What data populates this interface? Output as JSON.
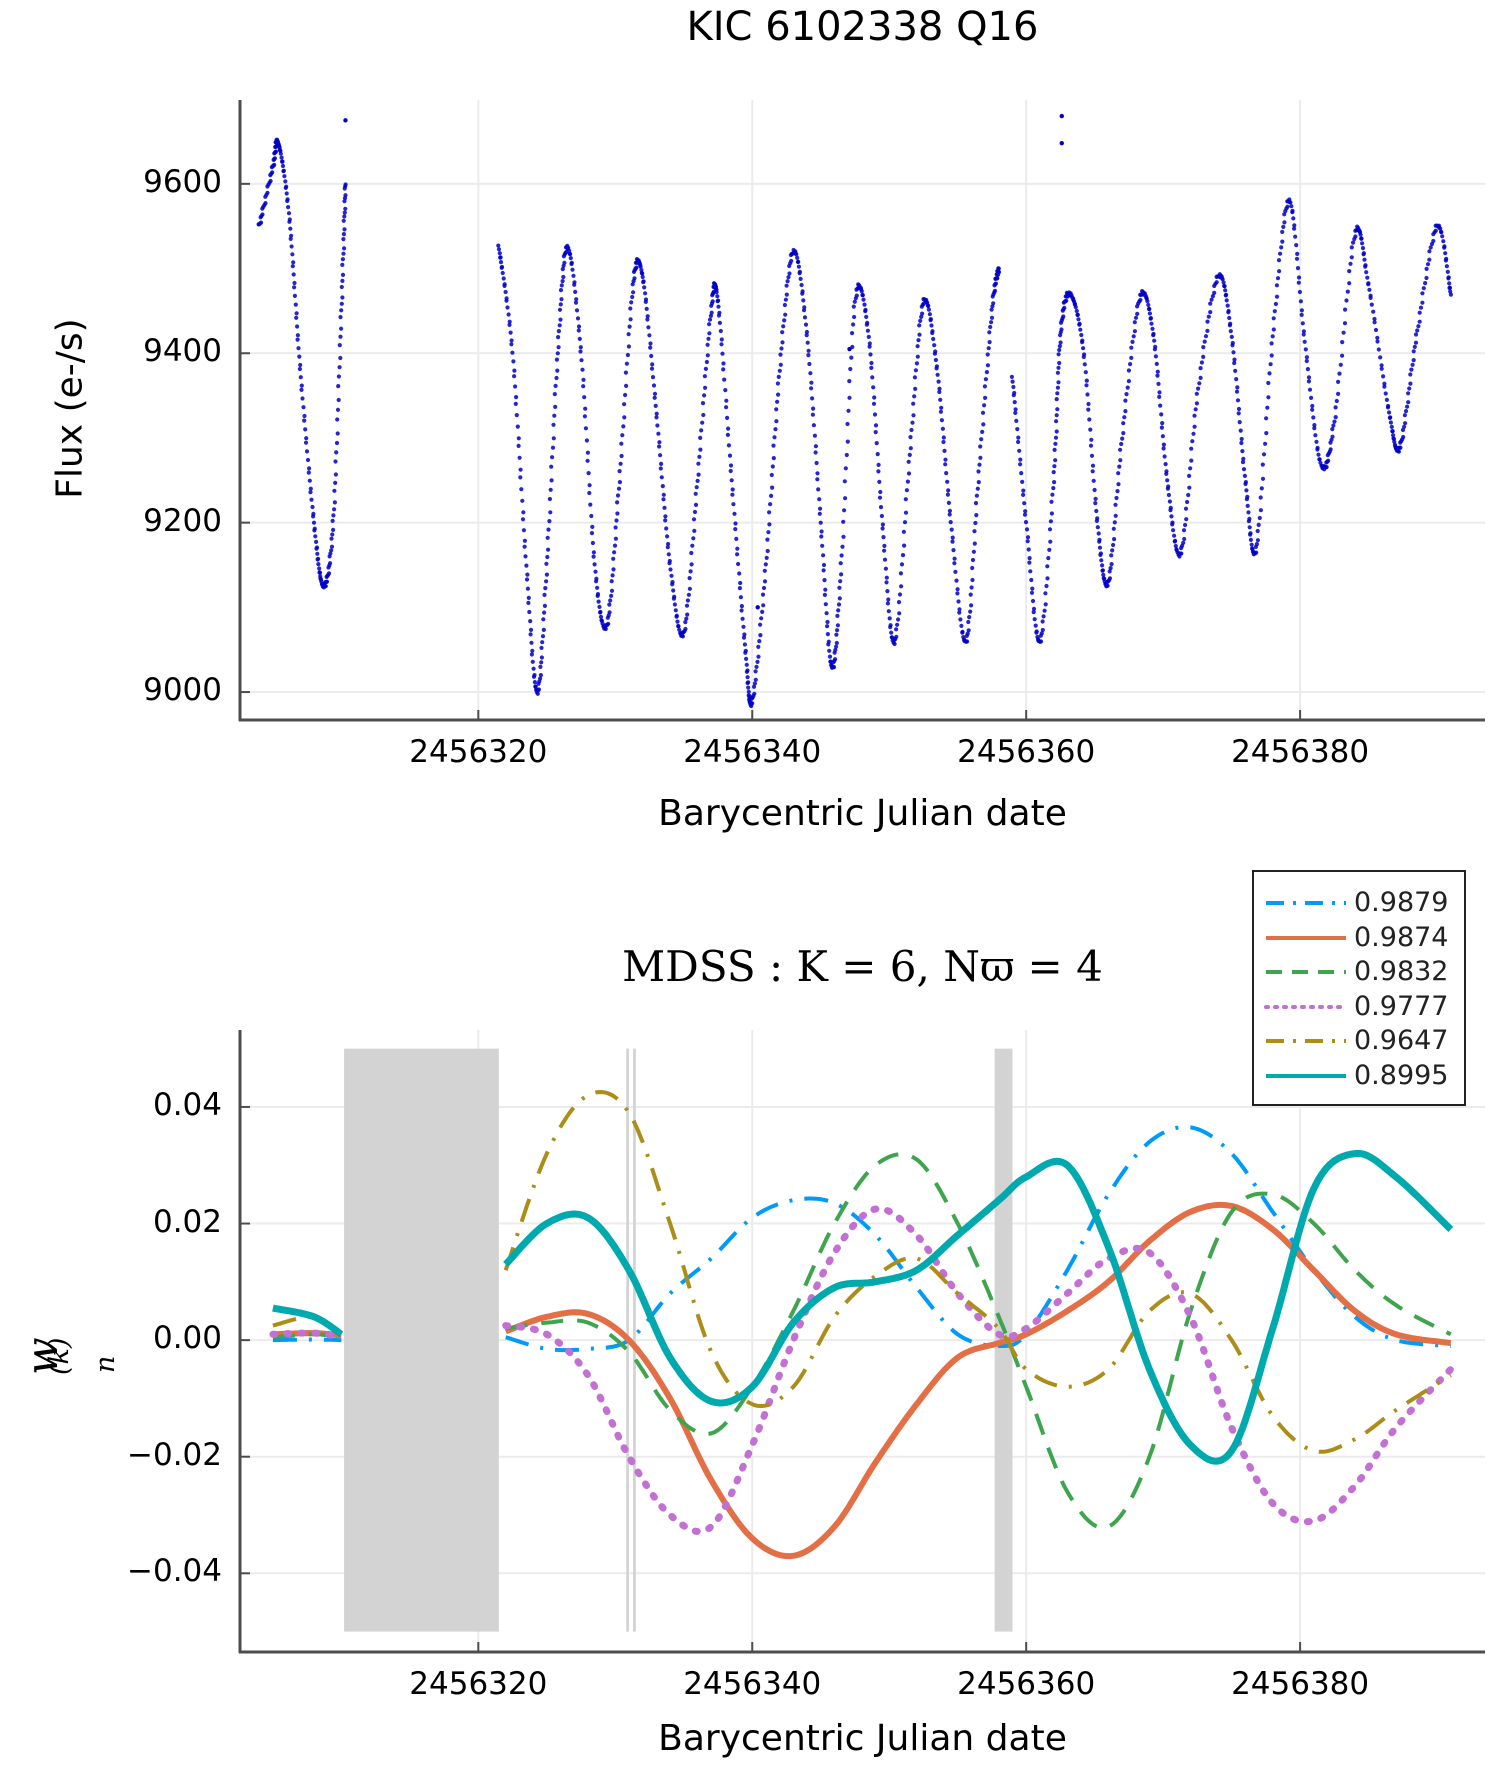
{
  "chart_data": [
    {
      "type": "scatter",
      "title": "KIC 6102338 Q16",
      "xlabel": "Barycentric Julian date",
      "ylabel": "Flux (e-/s)",
      "xlim": [
        2456302.6,
        2456393.5
      ],
      "ylim": [
        8967,
        9699
      ],
      "xticks": [
        2456320,
        2456340,
        2456360,
        2456380
      ],
      "xtick_labels": [
        "2456320",
        "2456340",
        "2456360",
        "2456380"
      ],
      "yticks": [
        9000,
        9200,
        9400,
        9600
      ],
      "ytick_labels": [
        "9000",
        "9200",
        "9400",
        "9600"
      ],
      "grid": true,
      "marker_color": "#0000c8",
      "segments": [
        {
          "x_start": 2456304.0,
          "x_end": 2456310.3,
          "points": [
            [
              2456304.0,
              9550
            ],
            [
              2456305.0,
              9620
            ],
            [
              2456305.4,
              9648
            ],
            [
              2456306.2,
              9560
            ],
            [
              2456307.0,
              9380
            ],
            [
              2456308.0,
              9200
            ],
            [
              2456308.7,
              9125
            ],
            [
              2456309.4,
              9200
            ],
            [
              2456310.0,
              9450
            ],
            [
              2456310.3,
              9600
            ]
          ]
        },
        {
          "x_start": 2456321.5,
          "x_end": 2456358.0,
          "points": [
            [
              2456321.5,
              9525
            ],
            [
              2456322.5,
              9400
            ],
            [
              2456323.5,
              9150
            ],
            [
              2456324.3,
              9000
            ],
            [
              2456325.0,
              9150
            ],
            [
              2456325.8,
              9400
            ],
            [
              2456326.5,
              9525
            ],
            [
              2456327.5,
              9400
            ],
            [
              2456328.5,
              9150
            ],
            [
              2456329.4,
              9080
            ],
            [
              2456330.3,
              9250
            ],
            [
              2456331.3,
              9480
            ],
            [
              2456332.0,
              9490
            ],
            [
              2456333.0,
              9330
            ],
            [
              2456334.0,
              9150
            ],
            [
              2456335.0,
              9070
            ],
            [
              2456336.0,
              9250
            ],
            [
              2456337.0,
              9450
            ],
            [
              2456337.5,
              9460
            ],
            [
              2456338.5,
              9250
            ],
            [
              2456339.5,
              9050
            ],
            [
              2456340.0,
              8990
            ],
            [
              2456341.0,
              9150
            ],
            [
              2456342.0,
              9380
            ],
            [
              2456343.0,
              9520
            ],
            [
              2456344.0,
              9420
            ],
            [
              2456345.0,
              9200
            ],
            [
              2456345.8,
              9030
            ],
            [
              2456346.5,
              9150
            ],
            [
              2456347.5,
              9460
            ],
            [
              2456348.5,
              9420
            ],
            [
              2456349.5,
              9200
            ],
            [
              2456350.4,
              9060
            ],
            [
              2456351.5,
              9280
            ],
            [
              2456352.5,
              9460
            ],
            [
              2456353.5,
              9380
            ],
            [
              2456354.5,
              9200
            ],
            [
              2456355.6,
              9060
            ],
            [
              2456356.5,
              9250
            ],
            [
              2456357.5,
              9450
            ],
            [
              2456358.0,
              9500
            ]
          ]
        },
        {
          "x_start": 2456359.0,
          "x_end": 2456391.0,
          "points": [
            [
              2456359.0,
              9370
            ],
            [
              2456360.0,
              9200
            ],
            [
              2456361.0,
              9060
            ],
            [
              2456362.0,
              9250
            ],
            [
              2456362.5,
              9420
            ],
            [
              2456363.2,
              9470
            ],
            [
              2456364.2,
              9400
            ],
            [
              2456365.2,
              9200
            ],
            [
              2456366.0,
              9130
            ],
            [
              2456367.0,
              9300
            ],
            [
              2456368.3,
              9465
            ],
            [
              2456369.3,
              9420
            ],
            [
              2456370.3,
              9250
            ],
            [
              2456371.3,
              9165
            ],
            [
              2456372.5,
              9350
            ],
            [
              2456374.0,
              9490
            ],
            [
              2456375.0,
              9420
            ],
            [
              2456376.0,
              9250
            ],
            [
              2456376.8,
              9170
            ],
            [
              2456378.0,
              9420
            ],
            [
              2456379.2,
              9580
            ],
            [
              2456380.3,
              9420
            ],
            [
              2456381.5,
              9270
            ],
            [
              2456382.5,
              9320
            ],
            [
              2456384.0,
              9540
            ],
            [
              2456385.0,
              9480
            ],
            [
              2456386.5,
              9330
            ],
            [
              2456387.3,
              9290
            ],
            [
              2456388.5,
              9420
            ],
            [
              2456390.0,
              9550
            ],
            [
              2456391.0,
              9470
            ]
          ]
        }
      ],
      "outliers": [
        [
          2456310.3,
          9675
        ],
        [
          2456362.6,
          9680
        ],
        [
          2456362.6,
          9648
        ],
        [
          2456347.1,
          9405
        ],
        [
          2456340.4,
          9100
        ]
      ]
    },
    {
      "type": "line",
      "title": "MDSS :  K = 6,  Nϖ = 4",
      "xlabel": "Barycentric Julian date",
      "ylabel": "w_n^(k)",
      "xlim": [
        2456302.6,
        2456393.5
      ],
      "ylim": [
        -0.0535,
        0.0532
      ],
      "xticks": [
        2456320,
        2456340,
        2456360,
        2456380
      ],
      "xtick_labels": [
        "2456320",
        "2456340",
        "2456360",
        "2456380"
      ],
      "yticks": [
        -0.04,
        -0.02,
        0.0,
        0.02,
        0.04
      ],
      "ytick_labels": [
        "−0.04",
        "−0.02",
        "0.00",
        "0.02",
        "0.04"
      ],
      "grid": true,
      "legend_position": "top-right",
      "gap_bands": [
        {
          "x_start": 2456310.2,
          "x_end": 2456321.5,
          "color": "#d3d3d3"
        },
        {
          "x_start": 2456330.8,
          "x_end": 2456331.0,
          "color": "#d3d3d3"
        },
        {
          "x_start": 2456331.3,
          "x_end": 2456331.5,
          "color": "#d3d3d3"
        },
        {
          "x_start": 2456357.7,
          "x_end": 2456359.0,
          "color": "#d3d3d3"
        }
      ],
      "x": [
        2456305,
        2456308,
        2456310,
        2456322,
        2456325,
        2456328,
        2456331,
        2456334,
        2456337,
        2456340,
        2456343,
        2456346,
        2456349,
        2456352,
        2456355,
        2456358,
        2456360,
        2456363,
        2456366,
        2456369,
        2456372,
        2456375,
        2456378,
        2456381,
        2456384,
        2456387,
        2456391
      ],
      "series": [
        {
          "name": "0.9879",
          "color": "#009af9",
          "style": "dashdot",
          "width": 4,
          "values": [
            0.0,
            0.0001,
            0.0,
            0.0005,
            -0.0015,
            -0.0015,
            0.0,
            0.008,
            0.014,
            0.021,
            0.024,
            0.0235,
            0.018,
            0.009,
            0.001,
            -0.001,
            0.001,
            0.012,
            0.025,
            0.034,
            0.0365,
            0.032,
            0.022,
            0.012,
            0.004,
            0.0,
            -0.001
          ]
        },
        {
          "name": "0.9874",
          "color": "#e26f46",
          "style": "solid",
          "width": 6,
          "values": [
            0.001,
            0.0012,
            0.0008,
            0.0015,
            0.004,
            0.0045,
            0.0,
            -0.01,
            -0.024,
            -0.034,
            -0.037,
            -0.032,
            -0.021,
            -0.011,
            -0.003,
            -0.0005,
            0.001,
            0.005,
            0.01,
            0.017,
            0.022,
            0.023,
            0.019,
            0.012,
            0.005,
            0.001,
            -0.0005
          ]
        },
        {
          "name": "0.9832",
          "color": "#3ea44e",
          "style": "dash",
          "width": 4,
          "values": [
            0.0005,
            0.001,
            0.0005,
            0.002,
            0.003,
            0.003,
            -0.002,
            -0.012,
            -0.016,
            -0.008,
            0.005,
            0.02,
            0.03,
            0.031,
            0.02,
            0.004,
            -0.008,
            -0.026,
            -0.032,
            -0.02,
            0.005,
            0.022,
            0.025,
            0.02,
            0.012,
            0.006,
            0.001
          ]
        },
        {
          "name": "0.9777",
          "color": "#c271d2",
          "style": "dot",
          "width": 7,
          "values": [
            0.001,
            0.0012,
            0.0005,
            0.0025,
            0.001,
            -0.006,
            -0.02,
            -0.03,
            -0.032,
            -0.018,
            0.0,
            0.015,
            0.0225,
            0.018,
            0.008,
            0.001,
            0.002,
            0.008,
            0.014,
            0.015,
            0.004,
            -0.015,
            -0.028,
            -0.031,
            -0.025,
            -0.015,
            -0.005
          ]
        },
        {
          "name": "0.9647",
          "color": "#ac8d18",
          "style": "dashdot",
          "width": 4,
          "values": [
            0.0025,
            0.004,
            0.001,
            0.012,
            0.032,
            0.042,
            0.039,
            0.02,
            -0.002,
            -0.011,
            -0.008,
            0.004,
            0.011,
            0.014,
            0.008,
            0.002,
            -0.005,
            -0.008,
            -0.005,
            0.005,
            0.008,
            0.0,
            -0.013,
            -0.019,
            -0.017,
            -0.012,
            -0.006
          ]
        },
        {
          "name": "0.8995",
          "color": "#00a9ad",
          "style": "solid",
          "width": 7,
          "values": [
            0.0055,
            0.004,
            0.001,
            0.013,
            0.02,
            0.021,
            0.012,
            -0.003,
            -0.0105,
            -0.008,
            0.003,
            0.009,
            0.01,
            0.012,
            0.018,
            0.024,
            0.028,
            0.03,
            0.016,
            -0.005,
            -0.018,
            -0.019,
            0.002,
            0.026,
            0.032,
            0.028,
            0.019
          ]
        }
      ],
      "legend": [
        {
          "label": "0.9879"
        },
        {
          "label": "0.9874"
        },
        {
          "label": "0.9832"
        },
        {
          "label": "0.9777"
        },
        {
          "label": "0.9647"
        },
        {
          "label": "0.8995"
        }
      ]
    }
  ],
  "top": {
    "title": "KIC 6102338 Q16",
    "xlabel": "Barycentric Julian date",
    "ylabel": "Flux (e-/s)"
  },
  "bottom": {
    "title": "MDSS :  K = 6,  Nϖ = 4",
    "xlabel": "Barycentric Julian date",
    "ylabel_main": "w",
    "ylabel_sub": "n",
    "ylabel_sup": "(k)"
  },
  "colors": {
    "axis": "#4d4d4d",
    "grid": "#ebebeb",
    "band": "#d3d3d3",
    "scatter": "#0000c8"
  }
}
